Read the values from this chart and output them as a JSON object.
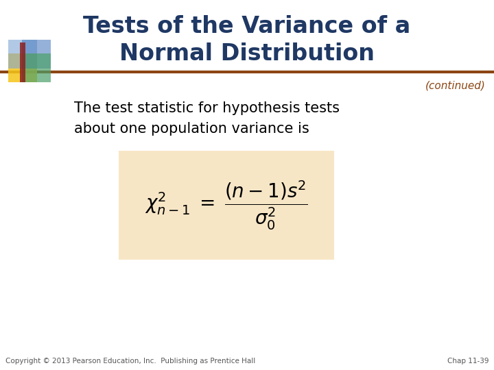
{
  "title_line1": "Tests of the Variance of a",
  "title_line2": "Normal Distribution",
  "title_color": "#1F3864",
  "continued_text": "(continued)",
  "continued_color": "#8B4513",
  "body_text_line1": "The test statistic for hypothesis tests",
  "body_text_line2": "about one population variance is",
  "body_text_color": "#000000",
  "formula_box_color": "#F5DEB3",
  "separator_color": "#8B4513",
  "background_color": "#FFFFFF",
  "footer_left": "Copyright © 2013 Pearson Education, Inc.  Publishing as Prentice Hall",
  "footer_right": "Chap 11-39",
  "footer_color": "#555555",
  "logo": {
    "blue_top_right": "#4E7EC0",
    "blue_top_left": "#7EA6D4",
    "green_bottom_right": "#4CA06A",
    "green_bottom_left": "#82C4A0",
    "yellow": "#F5C518",
    "red_bar": "#8B2020"
  }
}
